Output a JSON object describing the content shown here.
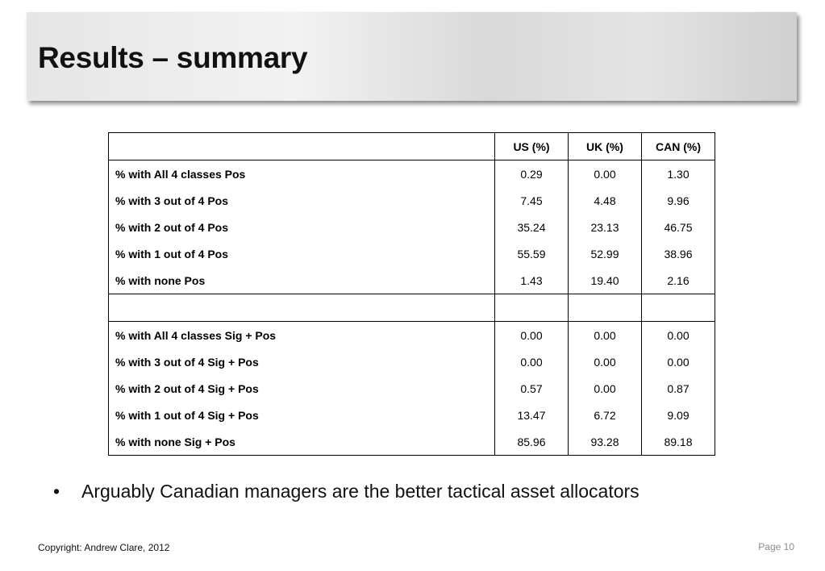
{
  "header": {
    "title": "Results – summary"
  },
  "table": {
    "columns": [
      "US (%)",
      "UK (%)",
      "CAN (%)"
    ],
    "groups": [
      [
        [
          "% with All 4 classes Pos",
          "0.29",
          "0.00",
          "1.30"
        ],
        [
          "% with 3 out of 4 Pos",
          "7.45",
          "4.48",
          "9.96"
        ],
        [
          "% with 2 out of 4 Pos",
          "35.24",
          "23.13",
          "46.75"
        ],
        [
          "% with 1 out of 4 Pos",
          "55.59",
          "52.99",
          "38.96"
        ],
        [
          "% with none Pos",
          "1.43",
          "19.40",
          "2.16"
        ]
      ],
      [
        [
          "% with All 4 classes Sig + Pos",
          "0.00",
          "0.00",
          "0.00"
        ],
        [
          "% with 3 out of 4 Sig + Pos",
          "0.00",
          "0.00",
          "0.00"
        ],
        [
          "% with 2 out of 4 Sig + Pos",
          "0.57",
          "0.00",
          "0.87"
        ],
        [
          "% with 1 out of 4 Sig + Pos",
          "13.47",
          "6.72",
          "9.09"
        ],
        [
          "% with none Sig + Pos",
          "85.96",
          "93.28",
          "89.18"
        ]
      ]
    ]
  },
  "bullet": "Arguably Canadian managers are the better tactical asset allocators",
  "footer": {
    "copyright": "Copyright: Andrew Clare, 2012",
    "page": "Page 10"
  }
}
